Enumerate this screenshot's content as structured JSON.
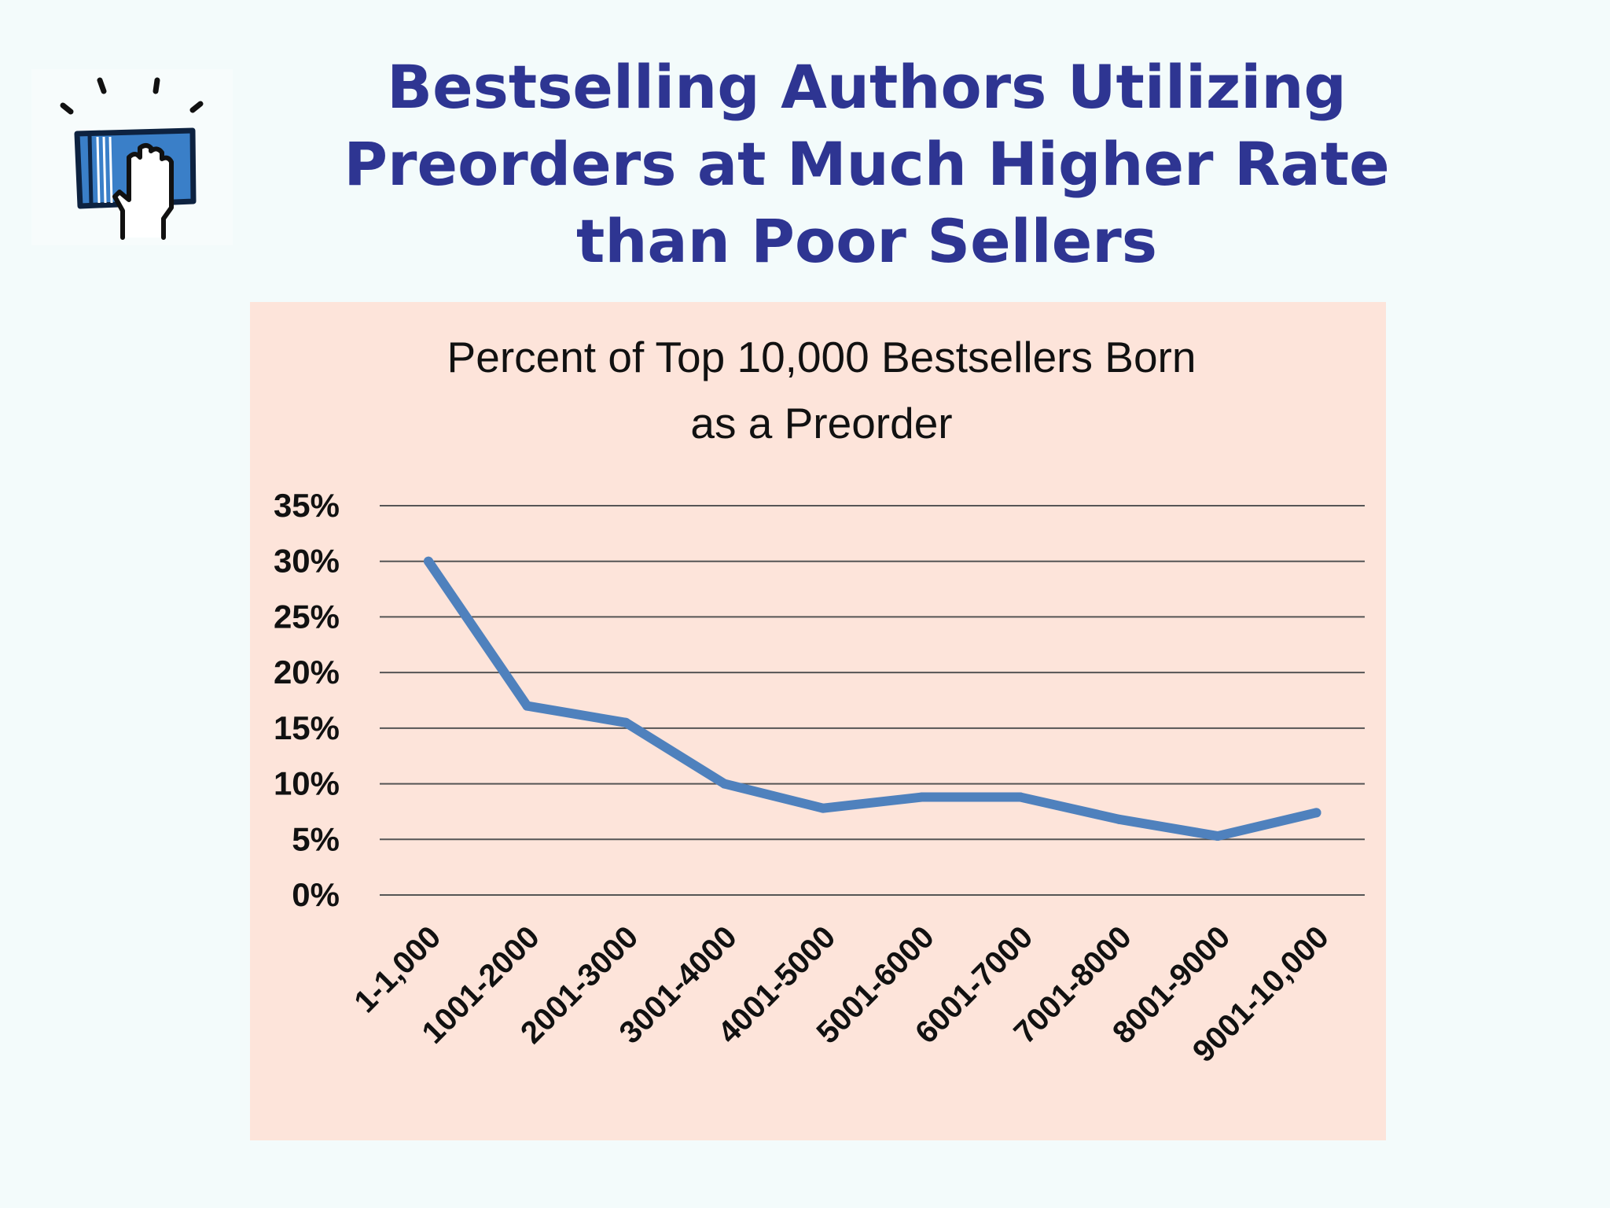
{
  "slide": {
    "title_lines": [
      "Bestselling Authors Utilizing",
      "Preorders at Much Higher Rate",
      "than Poor Sellers"
    ],
    "logo_icon": "hand-on-book-icon",
    "accent_color": "#2e3592"
  },
  "chart_data": {
    "type": "line",
    "title": "Percent of Top 10,000 Bestsellers Born as a Preorder",
    "title_lines": [
      "Percent of Top 10,000 Bestsellers Born",
      "as a Preorder"
    ],
    "categories": [
      "1-1,000",
      "1001-2000",
      "2001-3000",
      "3001-4000",
      "4001-5000",
      "5001-6000",
      "6001-7000",
      "7001-8000",
      "8001-9000",
      "9001-10,000"
    ],
    "series": [
      {
        "values": [
          30,
          17,
          15.5,
          10,
          7.8,
          8.8,
          8.8,
          6.8,
          5.3,
          7.4
        ],
        "color": "#4f81bd"
      }
    ],
    "y_ticks": [
      0,
      5,
      10,
      15,
      20,
      25,
      30,
      35
    ],
    "y_tick_labels": [
      "0%",
      "5%",
      "10%",
      "15%",
      "20%",
      "25%",
      "30%",
      "35%"
    ],
    "ylim": [
      0,
      35
    ],
    "xlabel": "",
    "ylabel": "",
    "grid": true,
    "legend": false,
    "background_color": "#fde4da"
  }
}
